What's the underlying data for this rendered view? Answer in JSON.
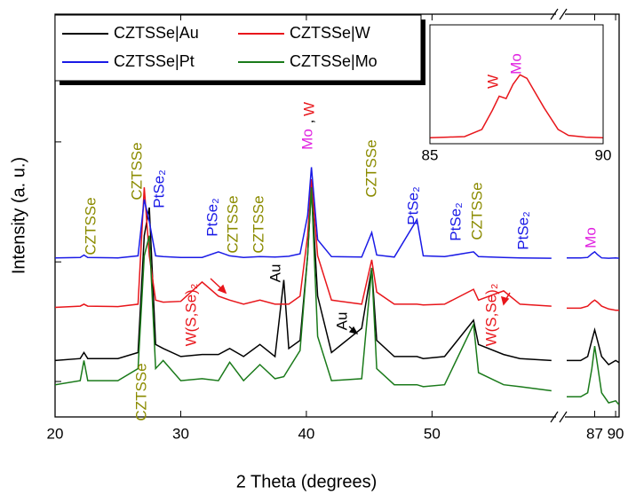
{
  "chart_data": [
    {
      "type": "line",
      "x_label": "2 Theta (degrees)",
      "y_label": "Intensity (a. u.)",
      "x": [
        20,
        22,
        22.3,
        22.6,
        25,
        26.6,
        27.1,
        27.5,
        28,
        28.6,
        30,
        31.7,
        33,
        33.9,
        35,
        36.3,
        37.5,
        38.2,
        38.6,
        39.5,
        40.1,
        40.4,
        40.9,
        42,
        44.4,
        45.2,
        45.6,
        47,
        48.8,
        49.3,
        51,
        53.3,
        53.7,
        55.7,
        57,
        59.5
      ],
      "xlim": [
        20,
        59.8
      ],
      "xticks": [
        20,
        30,
        40,
        50
      ],
      "ylim": [
        0,
        100
      ],
      "yticks": [
        8.8,
        38.5,
        68.3
      ],
      "legend": "upper left",
      "series": [
        {
          "name": "CZTSSe|Au",
          "color": "#000000",
          "values": [
            14,
            14.5,
            16,
            14.5,
            14.5,
            16,
            45,
            52,
            18,
            17,
            15,
            15.5,
            15.5,
            17,
            15,
            18,
            15,
            34,
            17,
            19,
            40,
            57,
            30,
            16,
            22,
            37,
            19,
            15,
            15,
            14.5,
            15,
            24,
            18,
            15.5,
            14.5,
            14
          ]
        },
        {
          "name": "CZTSSe|W",
          "color": "#e8161b",
          "values": [
            27.2,
            27.5,
            28,
            27.5,
            27.4,
            28,
            57,
            40,
            29,
            28.5,
            28.7,
            33.5,
            30,
            29,
            28,
            29,
            28,
            28,
            28,
            30,
            45,
            59,
            40,
            29,
            28,
            39,
            31,
            28,
            28,
            27.8,
            28,
            31.7,
            29,
            31.3,
            28,
            27.5
          ]
        },
        {
          "name": "CZTSSe|Pt",
          "color": "#1a1ae6",
          "values": [
            39.5,
            39.6,
            40.2,
            39.6,
            39.5,
            40,
            54,
            48.5,
            40,
            39.8,
            39.6,
            39.6,
            41,
            40,
            39.6,
            39.8,
            39.7,
            39.8,
            39.9,
            40.5,
            50,
            62,
            44,
            39.8,
            39.7,
            45.8,
            40.2,
            39.7,
            49,
            40,
            39.8,
            41,
            39.8,
            39.6,
            39.5,
            39.4
          ]
        },
        {
          "name": "CZTSSe|Mo",
          "color": "#1a7a1a",
          "values": [
            8,
            9,
            14,
            9,
            9,
            12,
            40,
            45,
            12,
            14,
            9,
            9.5,
            9,
            13.6,
            9,
            13,
            9.5,
            10,
            12,
            16.5,
            40,
            57,
            20,
            9,
            9.5,
            37,
            12,
            8,
            8,
            7.5,
            8,
            23,
            11,
            8,
            7.5,
            6.5
          ]
        }
      ],
      "annotations": [
        {
          "text": "CZTSSe",
          "color": "#8b8b00"
        },
        {
          "text": "CZTSSe",
          "color": "#8b8b00"
        },
        {
          "text": "PtSe₂",
          "color": "#1a1ae6"
        },
        {
          "text": "PtSe₂",
          "color": "#1a1ae6"
        },
        {
          "text": "CZTSSe",
          "color": "#8b8b00"
        },
        {
          "text": "CZTSSe",
          "color": "#8b8b00"
        },
        {
          "text": "Mo",
          "color": "#e020e0"
        },
        {
          "text": ",",
          "color": "#000000"
        },
        {
          "text": "W",
          "color": "#e8161b"
        },
        {
          "text": "Au",
          "color": "#000000"
        },
        {
          "text": "W(S,Se)₂",
          "color": "#e8161b"
        },
        {
          "text": "CZTSSe",
          "color": "#8b8b00"
        },
        {
          "text": "PtSe₂",
          "color": "#1a1ae6"
        },
        {
          "text": "PtSe₂",
          "color": "#1a1ae6"
        },
        {
          "text": "CZTSSe",
          "color": "#8b8b00"
        },
        {
          "text": "PtSe₂",
          "color": "#1a1ae6"
        },
        {
          "text": "Au",
          "color": "#000000"
        },
        {
          "text": "W(S,Se)₂",
          "color": "#e8161b"
        },
        {
          "text": "CZTSSe",
          "color": "#8b8b00"
        },
        {
          "text": "Mo",
          "color": "#e020e0"
        }
      ]
    },
    {
      "type": "line",
      "x": [
        83,
        85,
        86,
        86.6,
        87,
        87.4,
        88,
        89,
        90,
        90.5
      ],
      "xlim": [
        83,
        90.5
      ],
      "xticks": [
        87,
        90
      ],
      "ylim": [
        0,
        100
      ],
      "series": [
        {
          "color": "#000000",
          "values": [
            14,
            14,
            15,
            19,
            21.6,
            19,
            15,
            13,
            14,
            13.5
          ]
        },
        {
          "color": "#e8161b",
          "values": [
            27,
            27,
            27.5,
            28.5,
            29,
            28.5,
            27.5,
            26.8,
            26.5,
            26.5
          ]
        },
        {
          "color": "#1a1ae6",
          "values": [
            39.5,
            39.5,
            39.6,
            40.5,
            41,
            40.3,
            39.5,
            39.4,
            39.5,
            39.4
          ]
        },
        {
          "color": "#1a7a1a",
          "values": [
            5,
            5,
            6,
            12,
            17.6,
            13,
            6,
            3.5,
            4,
            3
          ]
        }
      ]
    },
    {
      "type": "line",
      "x": [
        85,
        85.5,
        86,
        86.5,
        86.8,
        87,
        87.2,
        87.4,
        87.6,
        87.8,
        88,
        88.3,
        88.7,
        89,
        89.5,
        90
      ],
      "xlim": [
        85,
        90
      ],
      "xticks": [
        85,
        90
      ],
      "ylim": [
        0,
        100
      ],
      "series": [
        {
          "color": "#e8161b",
          "values": [
            5,
            5.5,
            6,
            12,
            28,
            40,
            38,
            50,
            58,
            55,
            45,
            30,
            12,
            7,
            5.5,
            5
          ]
        }
      ],
      "annotations": [
        {
          "text": "W",
          "color": "#e8161b"
        },
        {
          "text": "Mo",
          "color": "#e020e0"
        }
      ]
    }
  ]
}
